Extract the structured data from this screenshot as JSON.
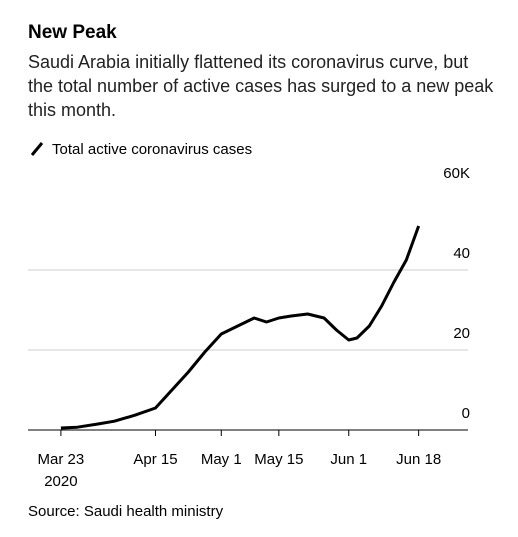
{
  "chart_data": {
    "type": "line",
    "title": "New Peak",
    "subtitle": "Saudi Arabia initially flattened its coronavirus curve, but the total number of active cases has surged to a new peak this month.",
    "source": "Source: Saudi health ministry",
    "x": [
      "2020-03-23",
      "2020-03-27",
      "2020-04-01",
      "2020-04-05",
      "2020-04-10",
      "2020-04-15",
      "2020-04-19",
      "2020-04-23",
      "2020-04-27",
      "2020-05-01",
      "2020-05-05",
      "2020-05-09",
      "2020-05-12",
      "2020-05-15",
      "2020-05-18",
      "2020-05-22",
      "2020-05-26",
      "2020-05-29",
      "2020-06-01",
      "2020-06-03",
      "2020-06-06",
      "2020-06-09",
      "2020-06-12",
      "2020-06-15",
      "2020-06-18"
    ],
    "series": [
      {
        "name": "Total active coronavirus cases",
        "color": "#000000",
        "values": [
          500,
          700,
          1500,
          2200,
          3700,
          5500,
          10000,
          14500,
          19500,
          24000,
          26000,
          28000,
          27000,
          28000,
          28500,
          29000,
          28000,
          25000,
          22500,
          23000,
          26000,
          31000,
          37000,
          42500,
          51000
        ]
      }
    ],
    "xlim": [
      "2020-03-15",
      "2020-06-30"
    ],
    "xticks": [
      {
        "value": "2020-03-23",
        "label": "Mar 23\n2020"
      },
      {
        "value": "2020-04-15",
        "label": "Apr 15"
      },
      {
        "value": "2020-05-01",
        "label": "May 1"
      },
      {
        "value": "2020-05-15",
        "label": "May 15"
      },
      {
        "value": "2020-06-01",
        "label": "Jun 1"
      },
      {
        "value": "2020-06-18",
        "label": "Jun 18"
      }
    ],
    "ylim": [
      0,
      60000
    ],
    "yticks": [
      0,
      {
        "value": 20000,
        "label": "20"
      },
      {
        "value": 40000,
        "label": "40"
      },
      {
        "value": 60000,
        "label": "60K"
      }
    ],
    "grid": true
  }
}
